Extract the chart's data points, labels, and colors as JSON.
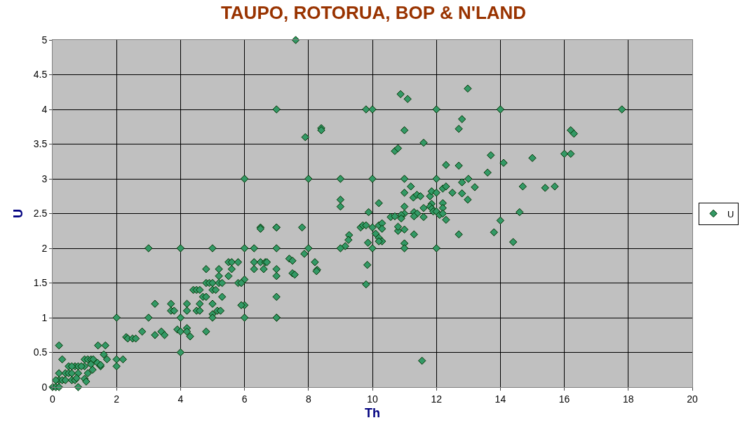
{
  "chart_data": {
    "type": "scatter",
    "title": "TAUPO, ROTORUA, BOP & N'LAND",
    "xlabel": "Th",
    "ylabel": "U",
    "xlim": [
      0,
      20
    ],
    "xticks": [
      0,
      2,
      4,
      6,
      8,
      10,
      12,
      14,
      16,
      18,
      20
    ],
    "ylim": [
      0,
      5
    ],
    "yticks": [
      0,
      0.5,
      1,
      1.5,
      2,
      2.5,
      3,
      3.5,
      4,
      4.5,
      5
    ],
    "grid": true,
    "legend": "right",
    "marker": "diamond",
    "series": [
      {
        "name": "U",
        "color": "#339966",
        "x": [
          0,
          0.1,
          0.2,
          0.8,
          0.2,
          0.3,
          1.42,
          1.65,
          1.6,
          1.0,
          1.1,
          1.2,
          1.27,
          0.5,
          0.7,
          0.8,
          1.0,
          1.2,
          1.4,
          1.5,
          1.5,
          1.7,
          0.2,
          0.4,
          0.5,
          0.6,
          0.8,
          1.25,
          1.1,
          0.2,
          0.3,
          0.4,
          0.6,
          0.7,
          0.75,
          1.0,
          1.05,
          0.1,
          0.6,
          0.9,
          3.0,
          4.0,
          5.0,
          4.8,
          5.2,
          5.2,
          4.8,
          4.9,
          5.0,
          5.2,
          5.3,
          4.4,
          4.5,
          4.6,
          5.0,
          5.1,
          4.7,
          4.8,
          5.3,
          3.2,
          3.7,
          4.2,
          4.6,
          5.0,
          3.7,
          3.8,
          4.2,
          4.5,
          4.6,
          5.15,
          5.25,
          5.0,
          2.0,
          3.0,
          4.0,
          3.9,
          4.0,
          4.2,
          4.2,
          4.3,
          4.8,
          3.2,
          3.4,
          3.5,
          2.8,
          2.3,
          2.35,
          2.5,
          2.6,
          4.0,
          2.0,
          2.2,
          2.0,
          6.0,
          8.0,
          6.5,
          6.5,
          7.0,
          7.8,
          6.0,
          6.3,
          7.0,
          8.0,
          7.87,
          5.5,
          5.6,
          5.8,
          6.3,
          6.5,
          6.65,
          6.7,
          7.4,
          7.5,
          8.2,
          8.27,
          8.25,
          5.6,
          6.3,
          6.6,
          7.0,
          5.5,
          7.0,
          7.5,
          7.57,
          6.0,
          5.8,
          5.9,
          6.0,
          5.9,
          5.0,
          6.0,
          7.0,
          7.6,
          7.0,
          9.8,
          10.0,
          8.4,
          8.4,
          7.9,
          10.7,
          10.8,
          9.0,
          10.0,
          9.0,
          9.0,
          10.2,
          9.88,
          10.57,
          10.7,
          9.63,
          9.7,
          9.8,
          10.0,
          10.2,
          10.3,
          10.3,
          10.1,
          10.2,
          10.3,
          10.2,
          9.86,
          10.8,
          9.27,
          9.25,
          9.15,
          9.0,
          10.0,
          9.84,
          9.8,
          7.0,
          7.0,
          7.0,
          10.88,
          11.1,
          12.98,
          12.0,
          14.0,
          12.8,
          12.7,
          11.0,
          11.6,
          13.7,
          14.1,
          15.0,
          12.3,
          12.7,
          13.6,
          11.0,
          12.0,
          13.0,
          12.8,
          11.2,
          13.2,
          14.7,
          11.0,
          11.28,
          11.39,
          11.5,
          11.8,
          11.85,
          12.0,
          12.2,
          12.3,
          12.5,
          12.8,
          12.98,
          11.0,
          11.85,
          11.8,
          11.86,
          11.9,
          11.6,
          12.2,
          12.2,
          12.0,
          12.1,
          12.2,
          12.3,
          11.3,
          11.4,
          11.0,
          10.9,
          10.9,
          11.3,
          11.6,
          10.8,
          11.0,
          11.3,
          11.0,
          11.0,
          12.0,
          12.7,
          14.0,
          13.8,
          14.4,
          14.6,
          11.55,
          17.8,
          16.2,
          16.3,
          16.0,
          16.2,
          15.4,
          15.7
        ],
        "values": [
          0,
          0,
          0,
          0,
          0.6,
          0.4,
          0.6,
          0.6,
          0.47,
          0.4,
          0.4,
          0.4,
          0.4,
          0.3,
          0.3,
          0.3,
          0.3,
          0.33,
          0.35,
          0.3,
          0.32,
          0.4,
          0.2,
          0.2,
          0.2,
          0.2,
          0.2,
          0.25,
          0.2,
          0.1,
          0.1,
          0.1,
          0.1,
          0.1,
          0.13,
          0.12,
          0.08,
          0.1,
          0.3,
          0.3,
          2.0,
          2.0,
          2.0,
          1.7,
          1.7,
          1.6,
          1.5,
          1.5,
          1.5,
          1.5,
          1.5,
          1.4,
          1.4,
          1.4,
          1.4,
          1.4,
          1.3,
          1.3,
          1.3,
          1.2,
          1.2,
          1.2,
          1.2,
          1.2,
          1.1,
          1.1,
          1.1,
          1.1,
          1.1,
          1.1,
          1.1,
          1.05,
          1.0,
          1.0,
          1.0,
          0.83,
          0.8,
          0.85,
          0.8,
          0.73,
          0.8,
          0.75,
          0.8,
          0.75,
          0.8,
          0.72,
          0.7,
          0.7,
          0.7,
          0.5,
          0.4,
          0.4,
          0.3,
          3.0,
          3.0,
          2.3,
          2.28,
          2.3,
          2.3,
          2.0,
          2.0,
          2.0,
          2.0,
          1.92,
          1.8,
          1.8,
          1.8,
          1.8,
          1.8,
          1.8,
          1.8,
          1.85,
          1.82,
          1.8,
          1.69,
          1.67,
          1.7,
          1.7,
          1.7,
          1.7,
          1.6,
          1.6,
          1.64,
          1.62,
          1.55,
          1.5,
          1.5,
          1.18,
          1.18,
          1.0,
          1.0,
          1.0,
          5.0,
          4.0,
          4.0,
          4.0,
          3.73,
          3.7,
          3.6,
          3.4,
          3.44,
          3.0,
          3.0,
          2.7,
          2.6,
          2.65,
          2.52,
          2.45,
          2.46,
          2.3,
          2.33,
          2.33,
          2.3,
          2.33,
          2.36,
          2.28,
          2.21,
          2.15,
          2.1,
          2.1,
          2.08,
          2.25,
          2.19,
          2.12,
          2.03,
          2.0,
          2.0,
          1.76,
          1.48,
          2.3,
          1.3,
          1.0,
          4.22,
          4.15,
          4.3,
          4.0,
          4.0,
          3.86,
          3.72,
          3.7,
          3.52,
          3.34,
          3.23,
          3.3,
          3.2,
          3.19,
          3.09,
          3.0,
          3.0,
          3.0,
          2.95,
          2.89,
          2.88,
          2.89,
          2.8,
          2.73,
          2.77,
          2.75,
          2.75,
          2.82,
          2.8,
          2.86,
          2.89,
          2.8,
          2.79,
          2.7,
          2.6,
          2.64,
          2.6,
          2.57,
          2.53,
          2.58,
          2.65,
          2.58,
          2.53,
          2.48,
          2.5,
          2.41,
          2.52,
          2.5,
          2.5,
          2.48,
          2.43,
          2.46,
          2.45,
          2.31,
          2.27,
          2.2,
          2.07,
          2.0,
          2.0,
          2.2,
          2.4,
          2.23,
          2.09,
          2.52,
          0.38,
          4.0,
          3.7,
          3.65,
          3.36,
          3.36,
          2.87,
          2.89
        ]
      }
    ]
  }
}
